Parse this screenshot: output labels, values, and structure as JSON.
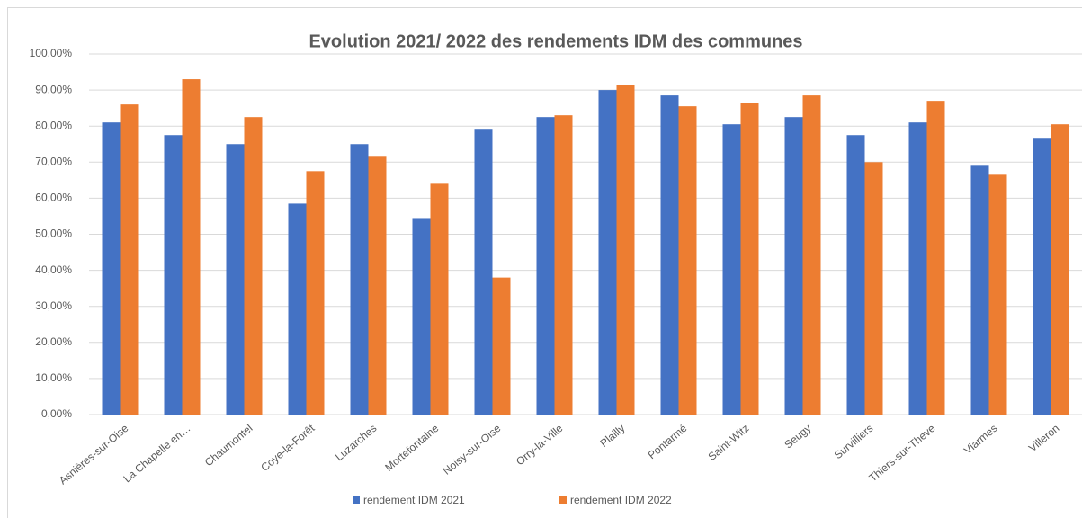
{
  "chart_data": {
    "type": "bar",
    "title": "Evolution 2021/ 2022 des rendements IDM des communes",
    "categories": [
      "Asnières-sur-Oise",
      "La Chapelle en…",
      "Chaumontel",
      "Coye-la-Forêt",
      "Luzarches",
      "Mortefontaine",
      "Noisy-sur-Oise",
      "Orry-la-Ville",
      "Plailly",
      "Pontarmé",
      "Saint-Witz",
      "Seugy",
      "Survilliers",
      "Thiers-sur-Thève",
      "Viarmes",
      "Villeron"
    ],
    "series": [
      {
        "name": "rendement IDM 2021",
        "color": "#4472c4",
        "values": [
          81,
          77.5,
          75,
          58.5,
          75,
          54.5,
          79,
          82.5,
          90,
          88.5,
          80.5,
          82.5,
          77.5,
          81,
          69,
          76.5
        ]
      },
      {
        "name": "rendement IDM 2022",
        "color": "#ed7d31",
        "values": [
          86,
          93,
          82.5,
          67.5,
          71.5,
          64,
          38,
          83,
          91.5,
          85.5,
          86.5,
          88.5,
          70,
          87,
          66.5,
          80.5
        ]
      }
    ],
    "ylim": [
      0,
      100
    ],
    "yticks": [
      {
        "value": 0,
        "label": "0,00%"
      },
      {
        "value": 10,
        "label": "10,00%"
      },
      {
        "value": 20,
        "label": "20,00%"
      },
      {
        "value": 30,
        "label": "30,00%"
      },
      {
        "value": 40,
        "label": "40,00%"
      },
      {
        "value": 50,
        "label": "50,00%"
      },
      {
        "value": 60,
        "label": "60,00%"
      },
      {
        "value": 70,
        "label": "70,00%"
      },
      {
        "value": 80,
        "label": "80,00%"
      },
      {
        "value": 90,
        "label": "90,00%"
      },
      {
        "value": 100,
        "label": "100,00%"
      }
    ],
    "grid": true,
    "legend": "bottom"
  }
}
